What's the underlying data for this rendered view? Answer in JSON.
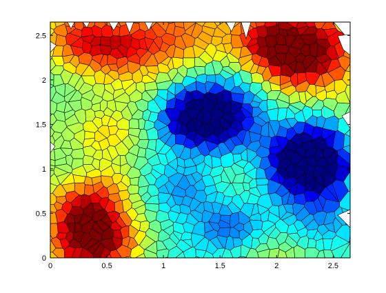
{
  "chart_data": {
    "type": "heatmap",
    "subtype": "voronoi-cell-colormap",
    "title": "",
    "xlabel": "",
    "ylabel": "",
    "xlim": [
      0,
      2.65
    ],
    "ylim": [
      0,
      2.65
    ],
    "xticks": [
      0,
      0.5,
      1,
      1.5,
      2,
      2.5
    ],
    "yticks": [
      0,
      0.5,
      1,
      1.5,
      2,
      2.5
    ],
    "xtick_labels": [
      "0",
      "0.5",
      "1",
      "1.5",
      "2",
      "2.5"
    ],
    "ytick_labels": [
      "0",
      "0.5",
      "1",
      "1.5",
      "2",
      "2.5"
    ],
    "colormap": "jet",
    "value_range": [
      0,
      1
    ],
    "grid": false,
    "legend": "none",
    "cell_edge_color": "#000000",
    "features": [
      {
        "x": 1.45,
        "y": 1.55,
        "w": 0.28,
        "v": -0.95
      },
      {
        "x": 1.25,
        "y": 1.6,
        "w": 0.22,
        "v": -0.6
      },
      {
        "x": 2.25,
        "y": 1.1,
        "w": 0.26,
        "v": -1.05
      },
      {
        "x": 2.35,
        "y": 1.05,
        "w": 0.18,
        "v": -0.5
      },
      {
        "x": 1.2,
        "y": 0.8,
        "w": 0.25,
        "v": -0.55
      },
      {
        "x": 1.6,
        "y": 0.35,
        "w": 0.22,
        "v": -0.5
      },
      {
        "x": 2.45,
        "y": 0.45,
        "w": 0.3,
        "v": -0.35
      },
      {
        "x": 2.4,
        "y": 1.5,
        "w": 0.22,
        "v": -0.35
      },
      {
        "x": 2.35,
        "y": 2.4,
        "w": 0.3,
        "v": 0.95
      },
      {
        "x": 2.1,
        "y": 2.15,
        "w": 0.2,
        "v": 0.45
      },
      {
        "x": 1.95,
        "y": 2.45,
        "w": 0.2,
        "v": 0.45
      },
      {
        "x": 0.4,
        "y": 0.2,
        "w": 0.26,
        "v": 0.95
      },
      {
        "x": 0.3,
        "y": 0.6,
        "w": 0.22,
        "v": 0.55
      },
      {
        "x": 0.2,
        "y": 2.45,
        "w": 0.25,
        "v": 0.65
      },
      {
        "x": 0.6,
        "y": 2.4,
        "w": 0.22,
        "v": 0.45
      },
      {
        "x": 1.1,
        "y": 2.55,
        "w": 0.3,
        "v": 0.55
      },
      {
        "x": 0.5,
        "y": 1.35,
        "w": 0.22,
        "v": 0.45
      },
      {
        "x": 0.55,
        "y": 0.85,
        "w": 0.18,
        "v": 0.3
      },
      {
        "x": 1.7,
        "y": 2.35,
        "w": 0.25,
        "v": 0.2
      }
    ],
    "base_value": 0.5
  }
}
